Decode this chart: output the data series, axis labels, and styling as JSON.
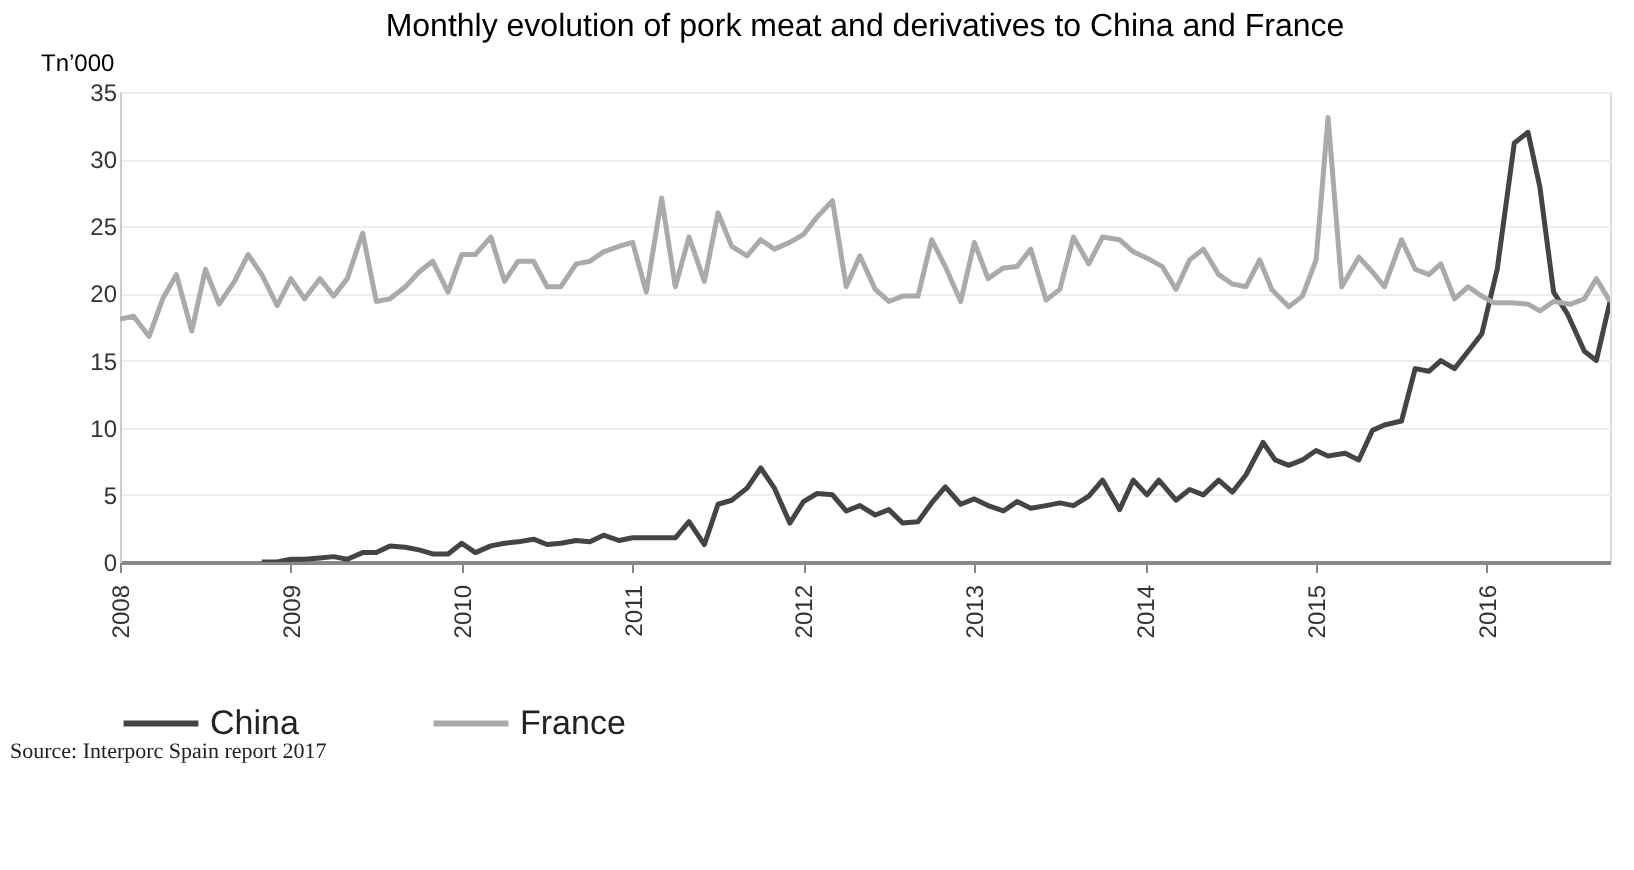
{
  "chart_data": {
    "type": "line",
    "title": "Monthly evolution of pork meat and derivatives to China and France",
    "ylabel": "Tn’000",
    "xlim": [
      2008,
      2016.72
    ],
    "xticks": [
      2008,
      2009,
      2010,
      2011,
      2012,
      2013,
      2014,
      2015,
      2016
    ],
    "ylim": [
      0,
      35
    ],
    "yticks": [
      0,
      5,
      10,
      15,
      20,
      25,
      30,
      35
    ],
    "grid": "y",
    "legend": "bottom",
    "marker": "none",
    "line_style": "solid",
    "annotations": [
      "Source: Interporc Spain report 2017"
    ],
    "series": [
      {
        "name": "China",
        "color": "#444444",
        "x": [
          2008.83,
          2008.92,
          2009.0,
          2009.08,
          2009.17,
          2009.25,
          2009.33,
          2009.42,
          2009.5,
          2009.58,
          2009.67,
          2009.75,
          2009.83,
          2009.92,
          2010.0,
          2010.08,
          2010.17,
          2010.25,
          2010.33,
          2010.42,
          2010.5,
          2010.58,
          2010.67,
          2010.75,
          2010.83,
          2010.92,
          2011.0,
          2011.08,
          2011.17,
          2011.25,
          2011.33,
          2011.42,
          2011.5,
          2011.58,
          2011.67,
          2011.75,
          2011.83,
          2011.92,
          2012.0,
          2012.08,
          2012.17,
          2012.25,
          2012.33,
          2012.42,
          2012.5,
          2012.58,
          2012.67,
          2012.75,
          2012.83,
          2012.92,
          2013.0,
          2013.08,
          2013.17,
          2013.25,
          2013.33,
          2013.42,
          2013.5,
          2013.58,
          2013.67,
          2013.75,
          2013.85,
          2013.93,
          2014.01,
          2014.08,
          2014.18,
          2014.26,
          2014.34,
          2014.43,
          2014.51,
          2014.59,
          2014.69,
          2014.76,
          2014.84,
          2014.92,
          2015.0,
          2015.07,
          2015.17,
          2015.25,
          2015.33,
          2015.4,
          2015.5,
          2015.58,
          2015.66,
          2015.73,
          2015.81,
          2015.89,
          2015.97,
          2016.06,
          2016.16,
          2016.24,
          2016.31,
          2016.39,
          2016.47,
          2016.57,
          2016.64,
          2016.72
        ],
        "values": [
          0,
          0,
          0.2,
          0.2,
          0.3,
          0.4,
          0.2,
          0.7,
          0.7,
          1.2,
          1.1,
          0.9,
          0.6,
          0.6,
          1.4,
          0.7,
          1.2,
          1.4,
          1.5,
          1.7,
          1.3,
          1.4,
          1.6,
          1.5,
          2.0,
          1.6,
          1.8,
          1.8,
          1.8,
          1.8,
          3.0,
          1.3,
          4.3,
          4.6,
          5.5,
          7.0,
          5.5,
          2.9,
          4.5,
          5.1,
          5.0,
          3.8,
          4.2,
          3.5,
          3.9,
          2.9,
          3.0,
          4.4,
          5.6,
          4.3,
          4.7,
          4.2,
          3.8,
          4.5,
          4.0,
          4.2,
          4.4,
          4.2,
          4.9,
          6.1,
          3.9,
          6.1,
          5.0,
          6.1,
          4.6,
          5.4,
          5.0,
          6.1,
          5.2,
          6.5,
          8.9,
          7.6,
          7.2,
          7.6,
          8.3,
          7.9,
          8.1,
          7.6,
          9.8,
          10.2,
          10.5,
          14.4,
          14.2,
          15.0,
          14.4,
          15.7,
          17.0,
          21.8,
          31.2,
          32.0,
          27.9,
          20.1,
          18.5,
          15.7,
          15.0,
          19.4
        ]
      },
      {
        "name": "France",
        "color": "#aaaaaa",
        "x": [
          2008.0,
          2008.08,
          2008.17,
          2008.25,
          2008.33,
          2008.42,
          2008.5,
          2008.58,
          2008.67,
          2008.75,
          2008.83,
          2008.92,
          2009.0,
          2009.08,
          2009.17,
          2009.25,
          2009.33,
          2009.42,
          2009.5,
          2009.58,
          2009.67,
          2009.75,
          2009.83,
          2009.92,
          2010.0,
          2010.08,
          2010.17,
          2010.25,
          2010.33,
          2010.42,
          2010.5,
          2010.58,
          2010.67,
          2010.75,
          2010.83,
          2010.92,
          2011.0,
          2011.08,
          2011.17,
          2011.25,
          2011.33,
          2011.42,
          2011.5,
          2011.58,
          2011.67,
          2011.75,
          2011.83,
          2011.92,
          2012.0,
          2012.08,
          2012.17,
          2012.25,
          2012.33,
          2012.42,
          2012.5,
          2012.58,
          2012.67,
          2012.75,
          2012.83,
          2012.92,
          2013.0,
          2013.08,
          2013.17,
          2013.25,
          2013.33,
          2013.42,
          2013.5,
          2013.58,
          2013.67,
          2013.75,
          2013.85,
          2013.93,
          2014.03,
          2014.1,
          2014.18,
          2014.26,
          2014.34,
          2014.43,
          2014.51,
          2014.59,
          2014.67,
          2014.74,
          2014.84,
          2014.92,
          2015.0,
          2015.07,
          2015.15,
          2015.25,
          2015.33,
          2015.4,
          2015.5,
          2015.58,
          2015.66,
          2015.73,
          2015.81,
          2015.89,
          2015.97,
          2016.04,
          2016.14,
          2016.24,
          2016.31,
          2016.39,
          2016.49,
          2016.57,
          2016.64,
          2016.72
        ],
        "values": [
          18.1,
          18.3,
          16.8,
          19.6,
          21.4,
          17.2,
          21.8,
          19.2,
          20.9,
          22.9,
          21.4,
          19.1,
          21.1,
          19.6,
          21.1,
          19.8,
          21.1,
          24.5,
          19.4,
          19.6,
          20.5,
          21.6,
          22.4,
          20.1,
          22.9,
          22.9,
          24.2,
          20.9,
          22.4,
          22.4,
          20.5,
          20.5,
          22.2,
          22.4,
          23.1,
          23.5,
          23.8,
          20.1,
          27.1,
          20.5,
          24.2,
          20.9,
          26.0,
          23.5,
          22.8,
          24.0,
          23.3,
          23.8,
          24.4,
          25.7,
          26.9,
          20.5,
          22.8,
          20.3,
          19.4,
          19.8,
          19.8,
          24.0,
          22.0,
          19.4,
          23.8,
          21.1,
          21.9,
          22.0,
          23.3,
          19.5,
          20.3,
          24.2,
          22.2,
          24.2,
          24.0,
          23.1,
          22.5,
          22.0,
          20.3,
          22.5,
          23.3,
          21.4,
          20.7,
          20.5,
          22.5,
          20.3,
          19.0,
          19.8,
          22.5,
          33.1,
          20.5,
          22.7,
          21.6,
          20.5,
          24.0,
          21.8,
          21.4,
          22.2,
          19.6,
          20.5,
          19.8,
          19.3,
          19.3,
          19.2,
          18.7,
          19.4,
          19.2,
          19.6,
          21.1,
          19.4
        ]
      }
    ]
  }
}
